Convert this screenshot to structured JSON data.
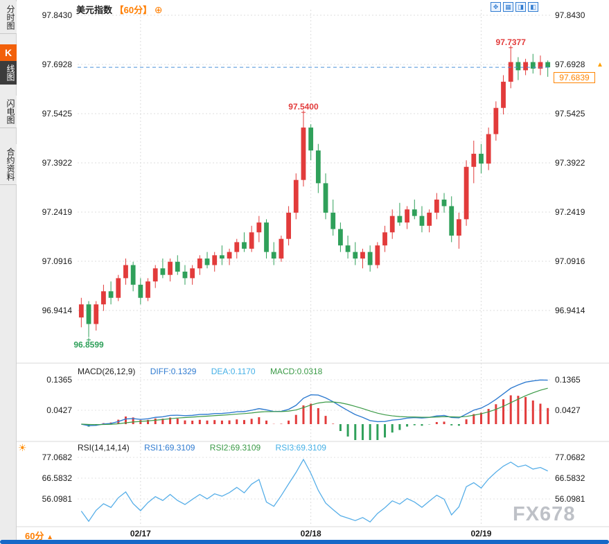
{
  "sidebar": {
    "items": [
      {
        "label": "分时图"
      },
      {
        "label": "K线图",
        "icon_letter": "K",
        "rest": "线图"
      },
      {
        "label": "闪电图"
      },
      {
        "label": "合约资料"
      }
    ]
  },
  "header": {
    "title": "美元指数",
    "interval_tag": "【60分】",
    "add_icon": "⊕"
  },
  "toolbar": {
    "icons": [
      {
        "name": "expand",
        "glyph": "✥"
      },
      {
        "name": "grid-layout",
        "glyph": "▦"
      },
      {
        "name": "panel-right",
        "glyph": "◨"
      },
      {
        "name": "panel-left",
        "glyph": "◧"
      }
    ]
  },
  "footer": {
    "interval_label": "60分",
    "arrow": "▲"
  },
  "watermark": "FX678",
  "chart_data": {
    "type": "candlestick",
    "symbol": "美元指数",
    "interval": "60分",
    "colors": {
      "up": "#e23b3b",
      "down": "#2fa05a",
      "price_line": "#4a90d9",
      "last_price": "#ff8400",
      "diff_line": "#2f7bd0",
      "dea_line": "#3a9a46",
      "rsi_line": "#56aee8"
    },
    "y_axis_labels": [
      "97.8430",
      "97.6928",
      "97.5425",
      "97.3922",
      "97.2419",
      "97.0916",
      "96.9414"
    ],
    "x_axis": {
      "labels": [
        "02/17",
        "02/18",
        "02/19"
      ],
      "indices": [
        8,
        31,
        54
      ]
    },
    "annotations": {
      "high_label": "97.7377",
      "high_index": 58,
      "mid_peak_label": "97.5400",
      "mid_peak_index": 30,
      "low_label": "96.8599",
      "low_index": 1,
      "last_price": "97.6839",
      "marker_arrow": "▲"
    },
    "candles": [
      [
        96.92,
        96.98,
        96.89,
        96.96
      ],
      [
        96.96,
        96.97,
        96.8599,
        96.9
      ],
      [
        96.9,
        96.97,
        96.88,
        96.96
      ],
      [
        96.96,
        97.02,
        96.94,
        97.0
      ],
      [
        97.0,
        97.03,
        96.96,
        96.98
      ],
      [
        96.98,
        97.05,
        96.97,
        97.04
      ],
      [
        97.04,
        97.1,
        97.02,
        97.08
      ],
      [
        97.08,
        97.09,
        97.0,
        97.02
      ],
      [
        97.02,
        97.04,
        96.96,
        96.98
      ],
      [
        96.98,
        97.04,
        96.97,
        97.03
      ],
      [
        97.03,
        97.08,
        97.01,
        97.07
      ],
      [
        97.07,
        97.1,
        97.04,
        97.05
      ],
      [
        97.05,
        97.1,
        97.03,
        97.09
      ],
      [
        97.09,
        97.11,
        97.05,
        97.06
      ],
      [
        97.06,
        97.08,
        97.02,
        97.04
      ],
      [
        97.04,
        97.08,
        97.02,
        97.07
      ],
      [
        97.07,
        97.11,
        97.05,
        97.1
      ],
      [
        97.1,
        97.12,
        97.07,
        97.08
      ],
      [
        97.08,
        97.12,
        97.06,
        97.11
      ],
      [
        97.11,
        97.14,
        97.08,
        97.1
      ],
      [
        97.1,
        97.13,
        97.08,
        97.12
      ],
      [
        97.12,
        97.16,
        97.1,
        97.15
      ],
      [
        97.15,
        97.18,
        97.12,
        97.13
      ],
      [
        97.13,
        97.2,
        97.12,
        97.18
      ],
      [
        97.18,
        97.23,
        97.15,
        97.21
      ],
      [
        97.21,
        97.22,
        97.1,
        97.12
      ],
      [
        97.12,
        97.15,
        97.08,
        97.1
      ],
      [
        97.1,
        97.17,
        97.09,
        97.16
      ],
      [
        97.16,
        97.26,
        97.14,
        97.24
      ],
      [
        97.24,
        97.36,
        97.22,
        97.34
      ],
      [
        97.34,
        97.54,
        97.32,
        97.5
      ],
      [
        97.5,
        97.51,
        97.4,
        97.43
      ],
      [
        97.43,
        97.45,
        97.3,
        97.33
      ],
      [
        97.33,
        97.36,
        97.22,
        97.24
      ],
      [
        97.24,
        97.28,
        97.17,
        97.19
      ],
      [
        97.19,
        97.21,
        97.12,
        97.14
      ],
      [
        97.14,
        97.17,
        97.1,
        97.12
      ],
      [
        97.12,
        97.15,
        97.08,
        97.1
      ],
      [
        97.1,
        97.13,
        97.07,
        97.12
      ],
      [
        97.12,
        97.14,
        97.06,
        97.08
      ],
      [
        97.08,
        97.15,
        97.07,
        97.14
      ],
      [
        97.14,
        97.2,
        97.12,
        97.18
      ],
      [
        97.18,
        97.25,
        97.16,
        97.23
      ],
      [
        97.23,
        97.27,
        97.2,
        97.21
      ],
      [
        97.21,
        97.26,
        97.19,
        97.25
      ],
      [
        97.25,
        97.28,
        97.22,
        97.23
      ],
      [
        97.23,
        97.26,
        97.18,
        97.2
      ],
      [
        97.2,
        97.25,
        97.18,
        97.24
      ],
      [
        97.24,
        97.3,
        97.22,
        97.28
      ],
      [
        97.28,
        97.3,
        97.24,
        97.26
      ],
      [
        97.26,
        97.29,
        97.15,
        97.17
      ],
      [
        97.17,
        97.24,
        97.13,
        97.22
      ],
      [
        97.22,
        97.4,
        97.2,
        97.38
      ],
      [
        97.38,
        97.46,
        97.33,
        97.42
      ],
      [
        97.42,
        97.45,
        97.36,
        97.39
      ],
      [
        97.39,
        97.5,
        97.37,
        97.48
      ],
      [
        97.48,
        97.58,
        97.46,
        97.56
      ],
      [
        97.56,
        97.66,
        97.54,
        97.64
      ],
      [
        97.64,
        97.7377,
        97.62,
        97.7
      ],
      [
        97.7,
        97.715,
        97.645,
        97.675
      ],
      [
        97.675,
        97.71,
        97.66,
        97.7
      ],
      [
        97.7,
        97.725,
        97.665,
        97.68
      ],
      [
        97.68,
        97.72,
        97.66,
        97.7
      ],
      [
        97.7,
        97.705,
        97.655,
        97.6839
      ]
    ],
    "macd": {
      "title": "MACD(26,12,9)",
      "diff": "DIFF:0.1329",
      "dea": "DEA:0.1170",
      "macd": "MACD:0.0318",
      "y_labels": [
        "0.1365",
        "0.0427"
      ]
    },
    "rsi": {
      "title": "RSI(14,14,14)",
      "rsi1": "RSI1:69.3109",
      "rsi2": "RSI2:69.3109",
      "rsi3": "RSI3:69.3109",
      "y_labels": [
        "77.0682",
        "66.5832",
        "56.0981"
      ],
      "settings_icon": "☀"
    }
  }
}
